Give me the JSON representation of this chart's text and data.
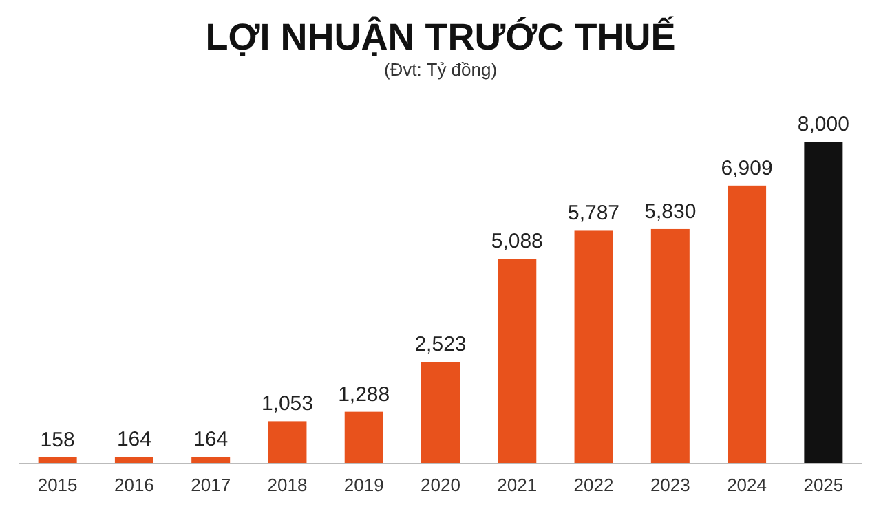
{
  "chart_data": {
    "type": "bar",
    "title": "LỢI NHUẬN TRƯỚC THUẾ",
    "subtitle": "(Đvt: Tỷ đồng)",
    "categories": [
      "2015",
      "2016",
      "2017",
      "2018",
      "2019",
      "2020",
      "2021",
      "2022",
      "2023",
      "2024",
      "2025"
    ],
    "values": [
      158,
      164,
      164,
      1053,
      1288,
      2523,
      5088,
      5787,
      5830,
      6909,
      8000
    ],
    "value_labels": [
      "158",
      "164",
      "164",
      "1,053",
      "1,288",
      "2,523",
      "5,088",
      "5,787",
      "5,830",
      "6,909",
      "8,000"
    ],
    "colors": [
      "#e8521c",
      "#e8521c",
      "#e8521c",
      "#e8521c",
      "#e8521c",
      "#e8521c",
      "#e8521c",
      "#e8521c",
      "#e8521c",
      "#e8521c",
      "#111111"
    ],
    "grid": false
  }
}
